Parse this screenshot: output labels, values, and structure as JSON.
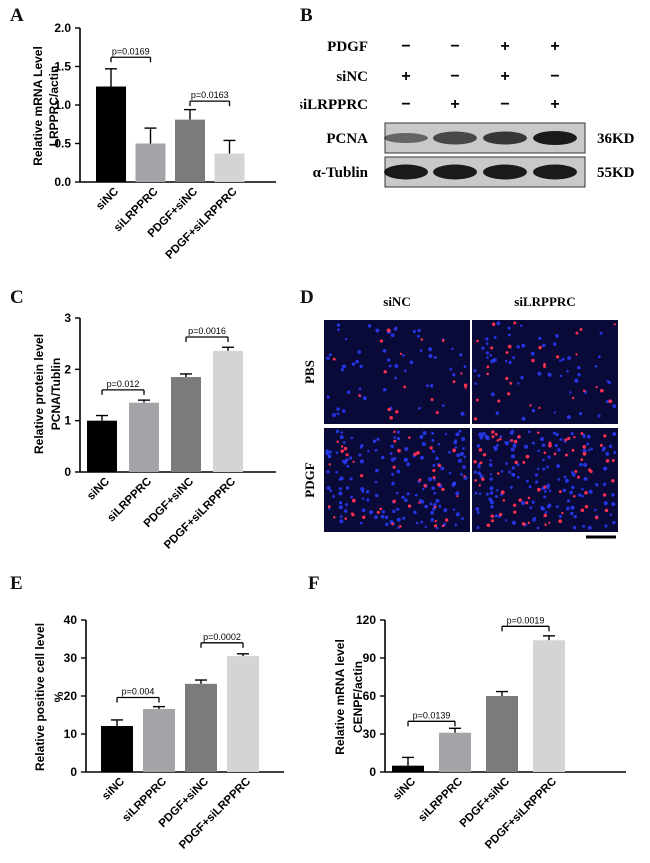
{
  "panels": {
    "A": "A",
    "B": "B",
    "C": "C",
    "D": "D",
    "E": "E",
    "F": "F"
  },
  "chart_data": [
    {
      "id": "A",
      "type": "bar",
      "categories": [
        "siNC",
        "siLRPPRC",
        "PDGF+siNC",
        "PDGF+siLRPPRC"
      ],
      "values": [
        1.24,
        0.5,
        0.81,
        0.37
      ],
      "errors": [
        0.23,
        0.2,
        0.13,
        0.17
      ],
      "colors": [
        "#000000",
        "#a4a4a8",
        "#7b7b7e",
        "#d4d4d4"
      ],
      "ylabel": "Relative mRNA Level",
      "ylabel2": "LRPPRC/actin",
      "ylim": [
        0,
        2.0
      ],
      "yticks": [
        "0.0",
        "0.5",
        "1.0",
        "1.5",
        "2.0"
      ],
      "tickvals": [
        0,
        0.5,
        1.0,
        1.5,
        2.0
      ],
      "annotations": [
        {
          "text": "p=0.0169",
          "from": 0,
          "to": 1,
          "y": 1.62
        },
        {
          "text": "p=0.0163",
          "from": 2,
          "to": 3,
          "y": 1.05
        }
      ]
    },
    {
      "id": "C",
      "type": "bar",
      "categories": [
        "siNC",
        "siLRPPRC",
        "PDGF+siNC",
        "PDGF+siLRPPRC"
      ],
      "values": [
        1.0,
        1.35,
        1.85,
        2.36
      ],
      "errors": [
        0.1,
        0.05,
        0.06,
        0.07
      ],
      "colors": [
        "#000000",
        "#a4a4a8",
        "#7b7b7e",
        "#d4d4d4"
      ],
      "ylabel": "Relative protein level",
      "ylabel2": "PCNA/Tublin",
      "ylim": [
        0,
        3
      ],
      "yticks": [
        "0",
        "1",
        "2",
        "3"
      ],
      "tickvals": [
        0,
        1,
        2,
        3
      ],
      "annotations": [
        {
          "text": "p=0.012",
          "from": 0,
          "to": 1,
          "y": 1.6
        },
        {
          "text": "p=0.0016",
          "from": 2,
          "to": 3,
          "y": 2.63
        }
      ]
    },
    {
      "id": "E",
      "type": "bar",
      "categories": [
        "siNC",
        "siLRPPRC",
        "PDGF+siNC",
        "PDGF+siLRPPRC"
      ],
      "values": [
        12.1,
        16.6,
        23.2,
        30.5
      ],
      "errors": [
        1.6,
        0.6,
        1.0,
        0.6
      ],
      "colors": [
        "#000000",
        "#a4a4a8",
        "#7b7b7e",
        "#d4d4d4"
      ],
      "ylabel": "Relative positive cell level",
      "ylabel2": "%",
      "ylim": [
        0,
        40
      ],
      "yticks": [
        "0",
        "10",
        "20",
        "30",
        "40"
      ],
      "tickvals": [
        0,
        10,
        20,
        30,
        40
      ],
      "annotations": [
        {
          "text": "p=0.004",
          "from": 0,
          "to": 1,
          "y": 19.6
        },
        {
          "text": "p=0.0002",
          "from": 2,
          "to": 3,
          "y": 34.0
        }
      ]
    },
    {
      "id": "F",
      "type": "bar",
      "categories": [
        "siNC",
        "siLRPPRC",
        "PDGF+siNC",
        "PDGF+siLRPPRC"
      ],
      "values": [
        5,
        31,
        60,
        104
      ],
      "errors": [
        6.5,
        3.5,
        3.5,
        3.5
      ],
      "colors": [
        "#000000",
        "#a4a4a8",
        "#7b7b7e",
        "#d4d4d4"
      ],
      "ylabel": "Relative  mRNA level",
      "ylabel2": "CENPF/actin",
      "ylim": [
        0,
        120
      ],
      "yticks": [
        "0",
        "30",
        "60",
        "90",
        "120"
      ],
      "tickvals": [
        0,
        30,
        60,
        90,
        120
      ],
      "annotations": [
        {
          "text": "p=0.0139",
          "from": 0,
          "to": 1,
          "y": 40
        },
        {
          "text": "p=0.0019",
          "from": 2,
          "to": 3,
          "y": 115
        }
      ]
    }
  ],
  "blot": {
    "rows": [
      {
        "label": "PDGF",
        "signs": [
          "−",
          "−",
          "+",
          "+"
        ]
      },
      {
        "label": "siNC",
        "signs": [
          "+",
          "−",
          "+",
          "−"
        ]
      },
      {
        "label": "siLRPPRC",
        "signs": [
          "−",
          "+",
          "−",
          "+"
        ]
      }
    ],
    "bands": [
      {
        "label": "PCNA",
        "kd": "36KD"
      },
      {
        "label": "α-Tublin",
        "kd": "55KD"
      }
    ]
  },
  "micrograph": {
    "cols": [
      "siNC",
      "siLRPPRC"
    ],
    "rows": [
      "PBS",
      "PDGF"
    ],
    "background": "#0a0a38",
    "nuclei_color": "#2a3cff",
    "positive_color": "#ff3050"
  }
}
